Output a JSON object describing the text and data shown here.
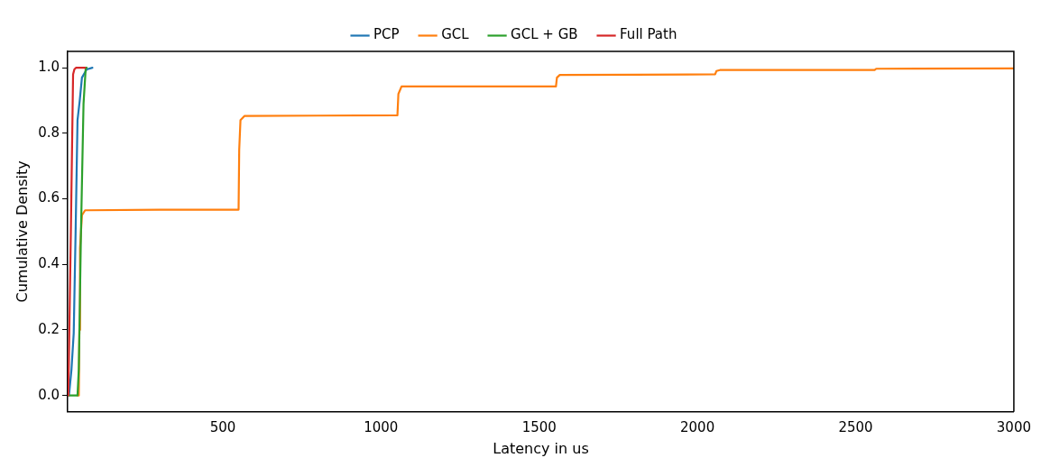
{
  "chart_data": {
    "type": "line",
    "xlabel": "Latency in us",
    "ylabel": "Cumulative Density",
    "legend": "top",
    "marker": "none",
    "xlim": [
      10,
      3000
    ],
    "ylim": [
      -0.05,
      1.05
    ],
    "xticks": [
      500,
      1000,
      1500,
      2000,
      2500,
      3000
    ],
    "yticks": [
      {
        "value": 0,
        "label": "0.0"
      },
      {
        "value": 0.2,
        "label": "0.2"
      },
      {
        "value": 0.4,
        "label": "0.4"
      },
      {
        "value": 0.6,
        "label": "0.6"
      },
      {
        "value": 0.8,
        "label": "0.8"
      },
      {
        "value": 1,
        "label": "1.0"
      }
    ],
    "series": [
      {
        "name": "PCP",
        "color": "#1f77b4",
        "x": [
          14,
          22,
          29,
          35,
          41,
          48,
          55,
          70,
          88
        ],
        "values": [
          0,
          0.08,
          0.19,
          0.5,
          0.84,
          0.9,
          0.97,
          0.995,
          1
        ]
      },
      {
        "name": "GCL",
        "color": "#ff7f0e",
        "x": [
          41,
          45,
          47,
          49,
          55,
          65,
          300,
          550,
          552,
          556,
          569,
          800,
          1052,
          1055,
          1065,
          1300,
          1553,
          1556,
          1565,
          1800,
          2056,
          2060,
          2071,
          2300,
          2560,
          2565,
          3000
        ],
        "values": [
          0,
          0,
          0.2,
          0.45,
          0.55,
          0.565,
          0.567,
          0.567,
          0.75,
          0.84,
          0.853,
          0.854,
          0.855,
          0.92,
          0.943,
          0.943,
          0.943,
          0.97,
          0.978,
          0.979,
          0.98,
          0.99,
          0.993,
          0.993,
          0.993,
          0.997,
          0.998
        ]
      },
      {
        "name": "GCL + GB",
        "color": "#2ca02c",
        "x": [
          13,
          41,
          45,
          52,
          60,
          67,
          70
        ],
        "values": [
          0,
          0,
          0.08,
          0.5,
          0.89,
          1,
          1
        ]
      },
      {
        "name": "Full Path",
        "color": "#d62728",
        "x": [
          12,
          20,
          27,
          31,
          36,
          50,
          65
        ],
        "values": [
          0,
          0.5,
          0.98,
          0.995,
          1,
          1,
          1
        ]
      }
    ]
  }
}
